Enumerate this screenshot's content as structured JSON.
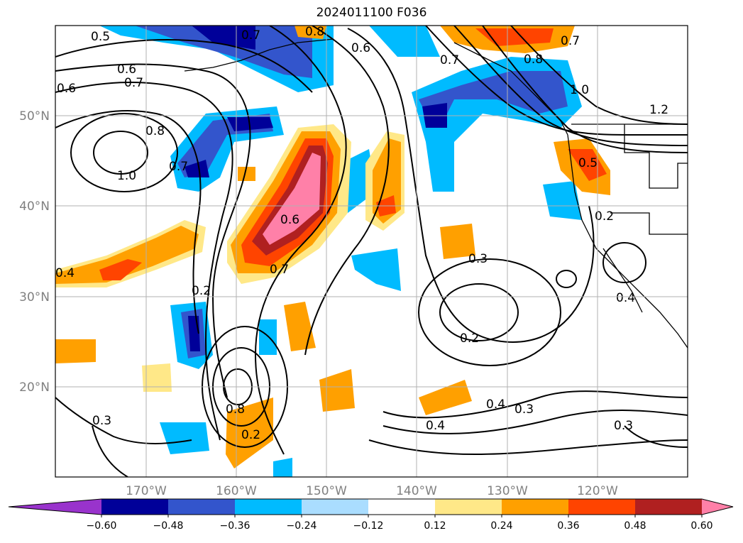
{
  "title": "2024011100 F036",
  "lat_labels": [
    "50°N",
    "40°N",
    "30°N",
    "20°N"
  ],
  "lon_labels": [
    "170°W",
    "160°W",
    "150°W",
    "140°W",
    "130°W",
    "120°W"
  ],
  "colorbar": {
    "levels": [
      "−0.60",
      "−0.48",
      "−0.36",
      "−0.24",
      "−0.12",
      "0.12",
      "0.24",
      "0.36",
      "0.48",
      "0.60"
    ],
    "colors": [
      "#9933cc",
      "#000099",
      "#3355cc",
      "#00bbff",
      "#aaddff",
      "#ffffff",
      "#ffe888",
      "#ffa000",
      "#ff4400",
      "#b02020",
      "#ff80a8"
    ]
  },
  "contour_labels": [
    "0.5",
    "0.6",
    "0.7",
    "0.6",
    "0.8",
    "0.7",
    "1.0",
    "0.7",
    "0.8",
    "0.7",
    "0.6",
    "0.8",
    "1.0",
    "0.7",
    "1.2",
    "0.5",
    "0.2",
    "0.6",
    "0.7",
    "0.3",
    "0.4",
    "0.2",
    "0.2",
    "0.4",
    "0.4",
    "0.3",
    "0.3",
    "0.2",
    "0.8",
    "0.3",
    "0.4"
  ]
}
